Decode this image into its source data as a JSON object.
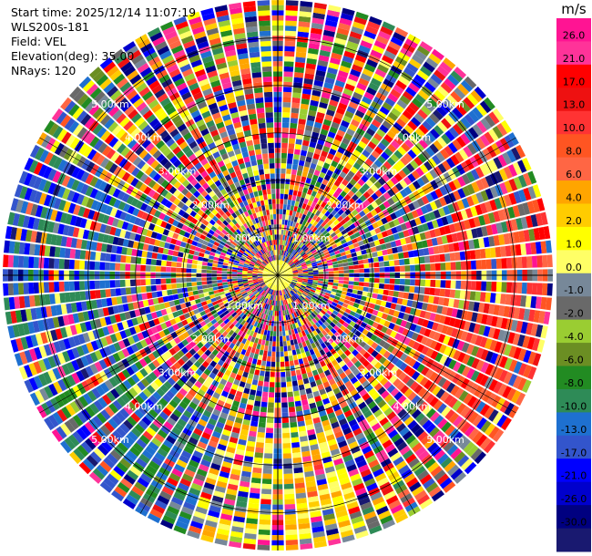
{
  "info": {
    "start_time": "Start time: 2025/12/14 11:07:19",
    "station": "WLS200s-181",
    "field": "Field: VEL",
    "elevation": "Elevation(deg): 35.00",
    "nrays": "NRays: 120"
  },
  "chart_data": {
    "type": "heatmap",
    "projection": "polar PPI",
    "field": "VEL",
    "nrays": 120,
    "elevation_deg": 35.0,
    "max_range_km": 5.8,
    "range_rings_km": [
      1,
      2,
      3,
      4,
      5
    ],
    "ring_labels": [
      "1.00km",
      "2.00km",
      "3.00km",
      "4.00km",
      "5.00km"
    ],
    "colorbar": {
      "unit": "m/s",
      "tick_labels": [
        "26.0",
        "21.0",
        "17.0",
        "13.0",
        "10.0",
        "8.0",
        "6.0",
        "4.0",
        "2.0",
        "1.0",
        "0.0",
        "-1.0",
        "-2.0",
        "-4.0",
        "-6.0",
        "-8.0",
        "-10.0",
        "-13.0",
        "-17.0",
        "-21.0",
        "-26.0",
        "-30.0"
      ],
      "colors": [
        "#ff1493",
        "#ff3399",
        "#ff0000",
        "#ee1111",
        "#ff3333",
        "#ff5522",
        "#ff6644",
        "#ffa500",
        "#ffcc00",
        "#ffff00",
        "#ffff66",
        "#778899",
        "#696969",
        "#9acd32",
        "#6b8e23",
        "#228b22",
        "#2e8b57",
        "#1e70d0",
        "#3355cc",
        "#0000ff",
        "#0000cd",
        "#000080",
        "#191970"
      ]
    }
  }
}
